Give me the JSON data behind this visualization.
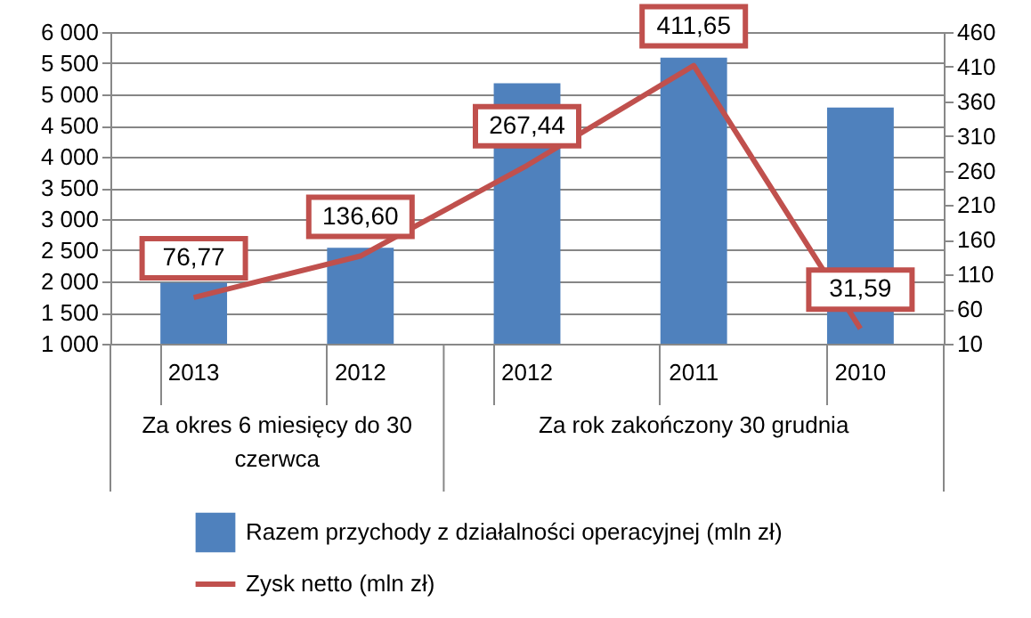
{
  "chart_data": {
    "type": "bar",
    "categories": [
      "2013",
      "2012",
      "2012",
      "2011",
      "2010"
    ],
    "series": [
      {
        "name": "Razem przychody z działalności operacyjnej (mln zł)",
        "axis": "y",
        "color": "#4f81bd",
        "values": [
          1980,
          2540,
          5180,
          5590,
          4790
        ]
      },
      {
        "name": "Zysk netto (mln zł)",
        "type": "line",
        "axis": "y2",
        "color": "#c0504d",
        "values": [
          76.77,
          136.6,
          267.44,
          411.65,
          31.59
        ],
        "value_labels": [
          "76,77",
          "136,60",
          "267,44",
          "411,65",
          "31,59"
        ]
      }
    ],
    "annotations": [
      "Za okres 6 miesięcy do 30 czerwca",
      "Za rok zakończony 30 grudnia"
    ],
    "ylim": [
      1000,
      6000
    ],
    "yticks": [
      {
        "value": 1000,
        "label": "1 000"
      },
      {
        "value": 1500,
        "label": "1 500"
      },
      {
        "value": 2000,
        "label": "2 000"
      },
      {
        "value": 2500,
        "label": "2 500"
      },
      {
        "value": 3000,
        "label": "3 000"
      },
      {
        "value": 3500,
        "label": "3 500"
      },
      {
        "value": 4000,
        "label": "4 000"
      },
      {
        "value": 4500,
        "label": "4 500"
      },
      {
        "value": 5000,
        "label": "5 000"
      },
      {
        "value": 5500,
        "label": "5 500"
      },
      {
        "value": 6000,
        "label": "6 000"
      }
    ],
    "y2lim": [
      10,
      460
    ],
    "y2ticks": [
      10,
      60,
      110,
      160,
      210,
      260,
      310,
      360,
      410,
      460
    ],
    "grid": "y",
    "legend": "bottom",
    "marker": "none"
  }
}
